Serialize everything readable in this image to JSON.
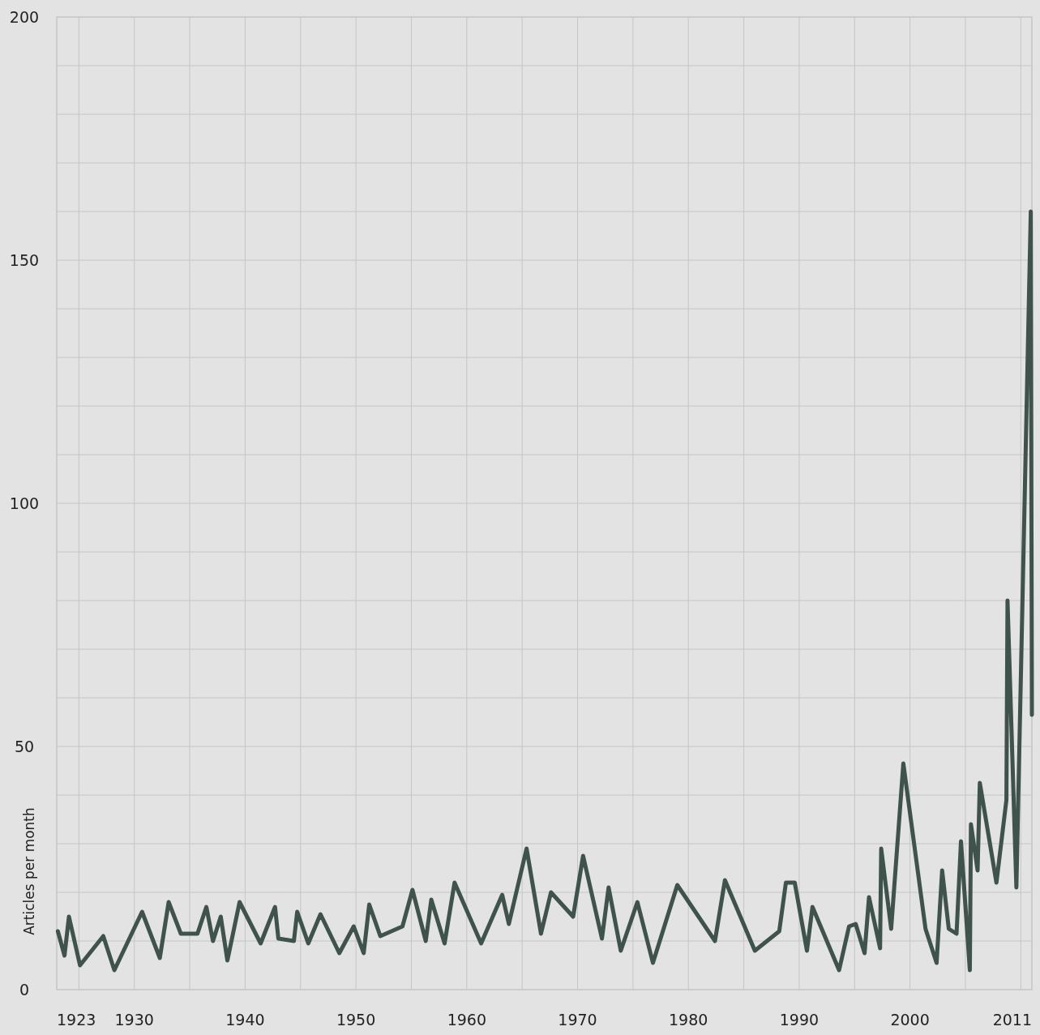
{
  "chart_data": {
    "type": "line",
    "ylabel": "Articles per month",
    "x": [
      1923.1,
      1923.7,
      1924.1,
      1925.1,
      1927.2,
      1928.2,
      1930.7,
      1932.3,
      1933.1,
      1934.2,
      1935.7,
      1936.5,
      1937.1,
      1937.8,
      1938.4,
      1939.5,
      1941.4,
      1942.7,
      1943.0,
      1944.4,
      1944.7,
      1945.7,
      1946.8,
      1948.5,
      1949.8,
      1950.7,
      1951.2,
      1952.2,
      1954.2,
      1955.1,
      1956.3,
      1956.8,
      1958.0,
      1958.9,
      1961.3,
      1963.2,
      1963.8,
      1965.4,
      1966.7,
      1967.6,
      1969.6,
      1970.5,
      1972.2,
      1972.8,
      1973.9,
      1975.4,
      1976.8,
      1979.0,
      1982.4,
      1983.3,
      1986.0,
      1988.2,
      1988.8,
      1989.6,
      1990.7,
      1991.2,
      1993.6,
      1994.5,
      1995.1,
      1995.9,
      1996.3,
      1997.3,
      1997.4,
      1998.3,
      1999.4,
      2001.4,
      2002.4,
      2002.9,
      2003.5,
      2004.2,
      2004.6,
      2005.4,
      2005.5,
      2006.1,
      2006.3,
      2007.8,
      2008.7,
      2008.8,
      2009.6,
      2010.9,
      2011.0
    ],
    "series": [
      {
        "color": "#3f524c",
        "values": [
          12,
          7,
          15,
          5,
          11,
          4,
          16,
          6.5,
          18,
          11.5,
          11.5,
          17,
          10,
          15,
          6,
          18,
          9.5,
          17,
          10.5,
          10,
          16,
          9.5,
          15.5,
          7.5,
          13,
          7.5,
          17.5,
          11,
          13,
          20.5,
          10,
          18.5,
          9.5,
          22,
          9.5,
          19.5,
          13.5,
          29,
          11.5,
          20,
          15,
          27.5,
          10.5,
          21,
          8,
          18,
          5.5,
          21.5,
          10,
          22.5,
          8,
          12,
          22,
          22,
          8,
          17,
          4,
          13,
          13.5,
          7.5,
          19,
          8.5,
          29,
          12.5,
          46.5,
          12.5,
          5.5,
          24.5,
          12.5,
          11.5,
          30.5,
          4,
          34,
          24.5,
          42.5,
          22,
          39,
          80,
          21,
          160,
          56.5
        ]
      }
    ],
    "xlim": [
      1923,
      2011
    ],
    "xticks": [
      1923,
      {
        "value": 1925,
        "label": null
      },
      1930,
      {
        "value": 1935,
        "label": null
      },
      1940,
      {
        "value": 1945,
        "label": null
      },
      1950,
      {
        "value": 1955,
        "label": null
      },
      1960,
      {
        "value": 1965,
        "label": null
      },
      1970,
      {
        "value": 1975,
        "label": null
      },
      1980,
      {
        "value": 1985,
        "label": null
      },
      1990,
      {
        "value": 1995,
        "label": null
      },
      2000,
      {
        "value": 2005,
        "label": null
      },
      {
        "value": 2010,
        "label": null
      },
      2011
    ],
    "ylim": [
      0,
      200
    ],
    "yticks": [
      0,
      {
        "value": 10,
        "label": null
      },
      {
        "value": 20,
        "label": null
      },
      {
        "value": 30,
        "label": null
      },
      {
        "value": 40,
        "label": null
      },
      50,
      {
        "value": 60,
        "label": null
      },
      {
        "value": 70,
        "label": null
      },
      {
        "value": 80,
        "label": null
      },
      {
        "value": 90,
        "label": null
      },
      100,
      {
        "value": 110,
        "label": null
      },
      {
        "value": 120,
        "label": null
      },
      {
        "value": 130,
        "label": null
      },
      {
        "value": 140,
        "label": null
      },
      150,
      {
        "value": 160,
        "label": null
      },
      {
        "value": 170,
        "label": null
      },
      {
        "value": 180,
        "label": null
      },
      {
        "value": 190,
        "label": null
      },
      200
    ],
    "grid": true,
    "line_style": "solid",
    "marker": "none"
  }
}
